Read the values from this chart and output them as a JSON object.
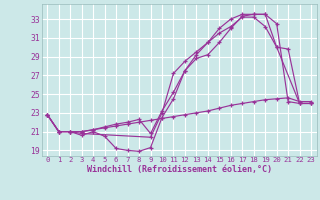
{
  "xlabel": "Windchill (Refroidissement éolien,°C)",
  "bg_color": "#cce8e8",
  "grid_color": "#ffffff",
  "line_color": "#993399",
  "xlim": [
    -0.5,
    23.5
  ],
  "ylim": [
    18.4,
    34.6
  ],
  "yticks": [
    19,
    21,
    23,
    25,
    27,
    29,
    31,
    33
  ],
  "xticks": [
    0,
    1,
    2,
    3,
    4,
    5,
    6,
    7,
    8,
    9,
    10,
    11,
    12,
    13,
    14,
    15,
    16,
    17,
    18,
    19,
    20,
    21,
    22,
    23
  ],
  "curves": [
    {
      "x": [
        0,
        1,
        2,
        3,
        4,
        5,
        6,
        7,
        8,
        9,
        10,
        11,
        12,
        13,
        14,
        15,
        16,
        17,
        18,
        19,
        20,
        21,
        22,
        23
      ],
      "y": [
        22.8,
        21.0,
        21.0,
        20.6,
        21.0,
        20.5,
        19.2,
        19.0,
        18.9,
        19.3,
        22.5,
        24.5,
        27.5,
        28.8,
        29.2,
        30.5,
        32.0,
        33.3,
        33.5,
        33.5,
        32.5,
        24.2,
        24.0,
        24.0
      ]
    },
    {
      "x": [
        0,
        1,
        2,
        3,
        4,
        5,
        6,
        7,
        8,
        9,
        10,
        11,
        12,
        13,
        14,
        15,
        16,
        17,
        18,
        19,
        20,
        22,
        23
      ],
      "y": [
        22.8,
        21.0,
        21.0,
        21.0,
        21.2,
        21.5,
        21.8,
        22.0,
        22.3,
        20.8,
        23.2,
        25.2,
        27.5,
        29.2,
        30.5,
        31.5,
        32.2,
        33.2,
        33.2,
        32.2,
        30.0,
        24.0,
        24.0
      ]
    },
    {
      "x": [
        0,
        1,
        2,
        3,
        4,
        5,
        6,
        7,
        8,
        9,
        10,
        11,
        12,
        13,
        14,
        15,
        16,
        17,
        18,
        19,
        20,
        21,
        22,
        23
      ],
      "y": [
        22.8,
        21.0,
        21.0,
        21.0,
        21.2,
        21.4,
        21.6,
        21.8,
        22.0,
        22.2,
        22.4,
        22.6,
        22.8,
        23.0,
        23.2,
        23.5,
        23.8,
        24.0,
        24.2,
        24.4,
        24.5,
        24.6,
        24.2,
        24.2
      ]
    },
    {
      "x": [
        0,
        1,
        2,
        3,
        9,
        10,
        11,
        12,
        13,
        14,
        15,
        16,
        17,
        18,
        19,
        20,
        21,
        22,
        23
      ],
      "y": [
        22.8,
        21.0,
        21.0,
        20.8,
        20.4,
        23.0,
        27.2,
        28.5,
        29.5,
        30.5,
        32.0,
        33.0,
        33.5,
        33.5,
        33.5,
        30.0,
        29.8,
        24.0,
        24.0
      ]
    }
  ]
}
